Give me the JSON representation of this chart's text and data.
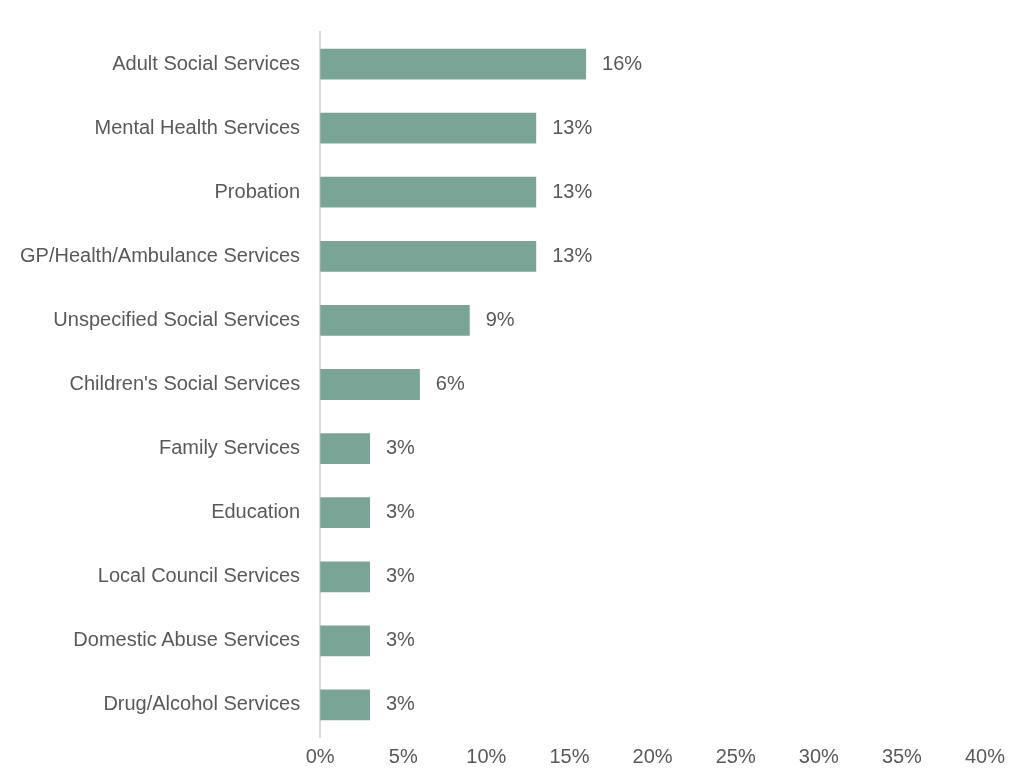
{
  "chart_data": {
    "type": "bar",
    "orientation": "horizontal",
    "categories": [
      "Adult Social Services",
      "Mental Health Services",
      "Probation",
      "GP/Health/Ambulance Services",
      "Unspecified Social Services",
      "Children's Social Services",
      "Family Services",
      "Education",
      "Local Council Services",
      "Domestic Abuse Services",
      "Drug/Alcohol Services"
    ],
    "values": [
      16,
      13,
      13,
      13,
      9,
      6,
      3,
      3,
      3,
      3,
      3
    ],
    "value_labels": [
      "16%",
      "13%",
      "13%",
      "13%",
      "9%",
      "6%",
      "3%",
      "3%",
      "3%",
      "3%",
      "3%"
    ],
    "color": "#7aa596",
    "xlim": [
      0,
      40
    ],
    "xticks": [
      {
        "value": 0,
        "label": "0%"
      },
      {
        "value": 5,
        "label": "5%"
      },
      {
        "value": 10,
        "label": "10%"
      },
      {
        "value": 15,
        "label": "15%"
      },
      {
        "value": 20,
        "label": "20%"
      },
      {
        "value": 25,
        "label": "25%"
      },
      {
        "value": 30,
        "label": "30%"
      },
      {
        "value": 35,
        "label": "35%"
      },
      {
        "value": 40,
        "label": "40%"
      }
    ],
    "grid": false,
    "legend": false
  }
}
